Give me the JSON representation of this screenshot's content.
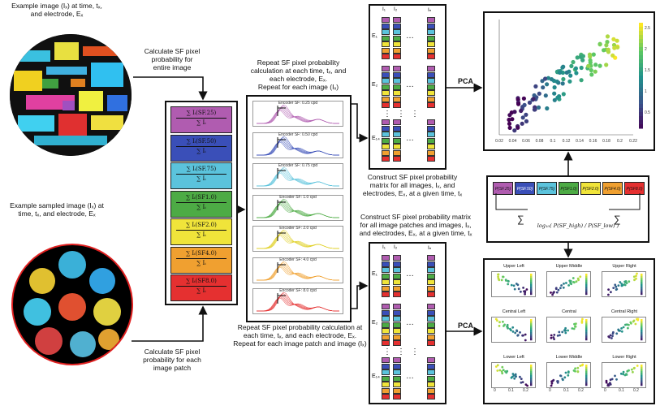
{
  "captions": {
    "example_image": "Example image (Iₓ) at time, tₓ,\nand electrode, Eₓ",
    "calc_entire": "Calculate SF pixel\nprobability for\nentire image",
    "example_sampled": "Example sampled image (Iₓ) at\ntime, tₓ, and electrode, Eₓ",
    "calc_patch": "Calculate SF pixel\nprobability for each\nimage patch",
    "repeat_top": "Repeat SF pixel probability\ncalculation at each time, tₓ, and\neach electrode, Eₓ.\nRepeat for each image (Iₓ)",
    "repeat_bottom": "Repeat SF pixel probability calculation at\neach time, tₓ, and each electrode, Eₓ.\nRepeat for each image patch and image (Iₓ)",
    "construct_top": "Construct SF pixel probability\nmatrix for all images, Iₓ, and\nelectrodes, Eₓ, at a given time, tₓ",
    "construct_bottom": "Construct SF pixel probability matrix\nfor all image patches and images, Iₓ,\nand electrodes, Eₓ, at a given time, tₓ",
    "pca_top": "PCA",
    "pca_bottom": "PCA"
  },
  "formulas": [
    {
      "num": "∑ Iᵢ(SF.25)",
      "den": "∑ Iᵢ",
      "color": "#b05cb0"
    },
    {
      "num": "∑ Iᵢ(SF.50)",
      "den": "∑ Iᵢ",
      "color": "#3a4fb8"
    },
    {
      "num": "∑ Iᵢ(SF.75)",
      "den": "∑ Iᵢ",
      "color": "#5bc3dc"
    },
    {
      "num": "∑ Iᵢ(SF1.0)",
      "den": "∑ Iᵢ",
      "color": "#4dab45"
    },
    {
      "num": "∑ Iᵢ(SF2.0)",
      "den": "∑ Iᵢ",
      "color": "#f0e43a"
    },
    {
      "num": "∑ Iᵢ(SF4.0)",
      "den": "∑ Iᵢ",
      "color": "#f0a030"
    },
    {
      "num": "∑ Iᵢ(SF8.0)",
      "den": "∑ Iᵢ",
      "color": "#e53030"
    }
  ],
  "histograms": [
    {
      "title": "Encoder SF: 0.25 cpd",
      "color": "#b05cb0"
    },
    {
      "title": "Encoder SF: 0.50 cpd",
      "color": "#3a4fb8"
    },
    {
      "title": "Encoder SF: 0.75 cpd",
      "color": "#5bc3dc"
    },
    {
      "title": "Encoder SF: 1.0 cpd",
      "color": "#4dab45"
    },
    {
      "title": "Encoder SF: 2.0 cpd",
      "color": "#e0d020"
    },
    {
      "title": "Encoder SF: 4.0 cpd",
      "color": "#f0a030"
    },
    {
      "title": "Encoder SF: 8.0 cpd",
      "color": "#e53030"
    }
  ],
  "matrix": {
    "headers": [
      "I₁",
      "I₂",
      "Iₙ"
    ],
    "top_electrodes": [
      "E₁",
      "E₂",
      "E₁₄"
    ],
    "bottom_electrodes": [
      "E₁",
      "E₂",
      "E₁₄"
    ],
    "dots": "…",
    "vdots": "⋮"
  },
  "legend": {
    "labels": [
      "P(SF.25)",
      "P(SF.50)",
      "P(SF.75)",
      "P(SF1.0)",
      "P(SF2.0)",
      "P(SF4.0)",
      "P(SF8.0)"
    ],
    "sum_left": "∑",
    "sum_right": "∑",
    "log_formula": "log₁₀( P(SF_high) / P(SF_low) )"
  },
  "scatter_main": {
    "xticks": [
      "0.02",
      "0.04",
      "0.06",
      "0.08",
      "0.1",
      "0.12",
      "0.14",
      "0.16",
      "0.18",
      "0.2",
      "0.22"
    ],
    "cbar_ticks": [
      "2.5",
      "2",
      "1.5",
      "1",
      "0.5"
    ]
  },
  "small_multiples": {
    "titles": [
      "Upper Left",
      "Upper Middle",
      "Upper Right",
      "Central Left",
      "Central",
      "Central Right",
      "Lower Left",
      "Lower Middle",
      "Lower Right"
    ],
    "xticks": [
      "0",
      "0.1",
      "0.2"
    ]
  },
  "colors": {
    "sf": [
      "#b05cb0",
      "#3a4fb8",
      "#5bc3dc",
      "#4dab45",
      "#f0e43a",
      "#f0a030",
      "#e53030"
    ]
  }
}
